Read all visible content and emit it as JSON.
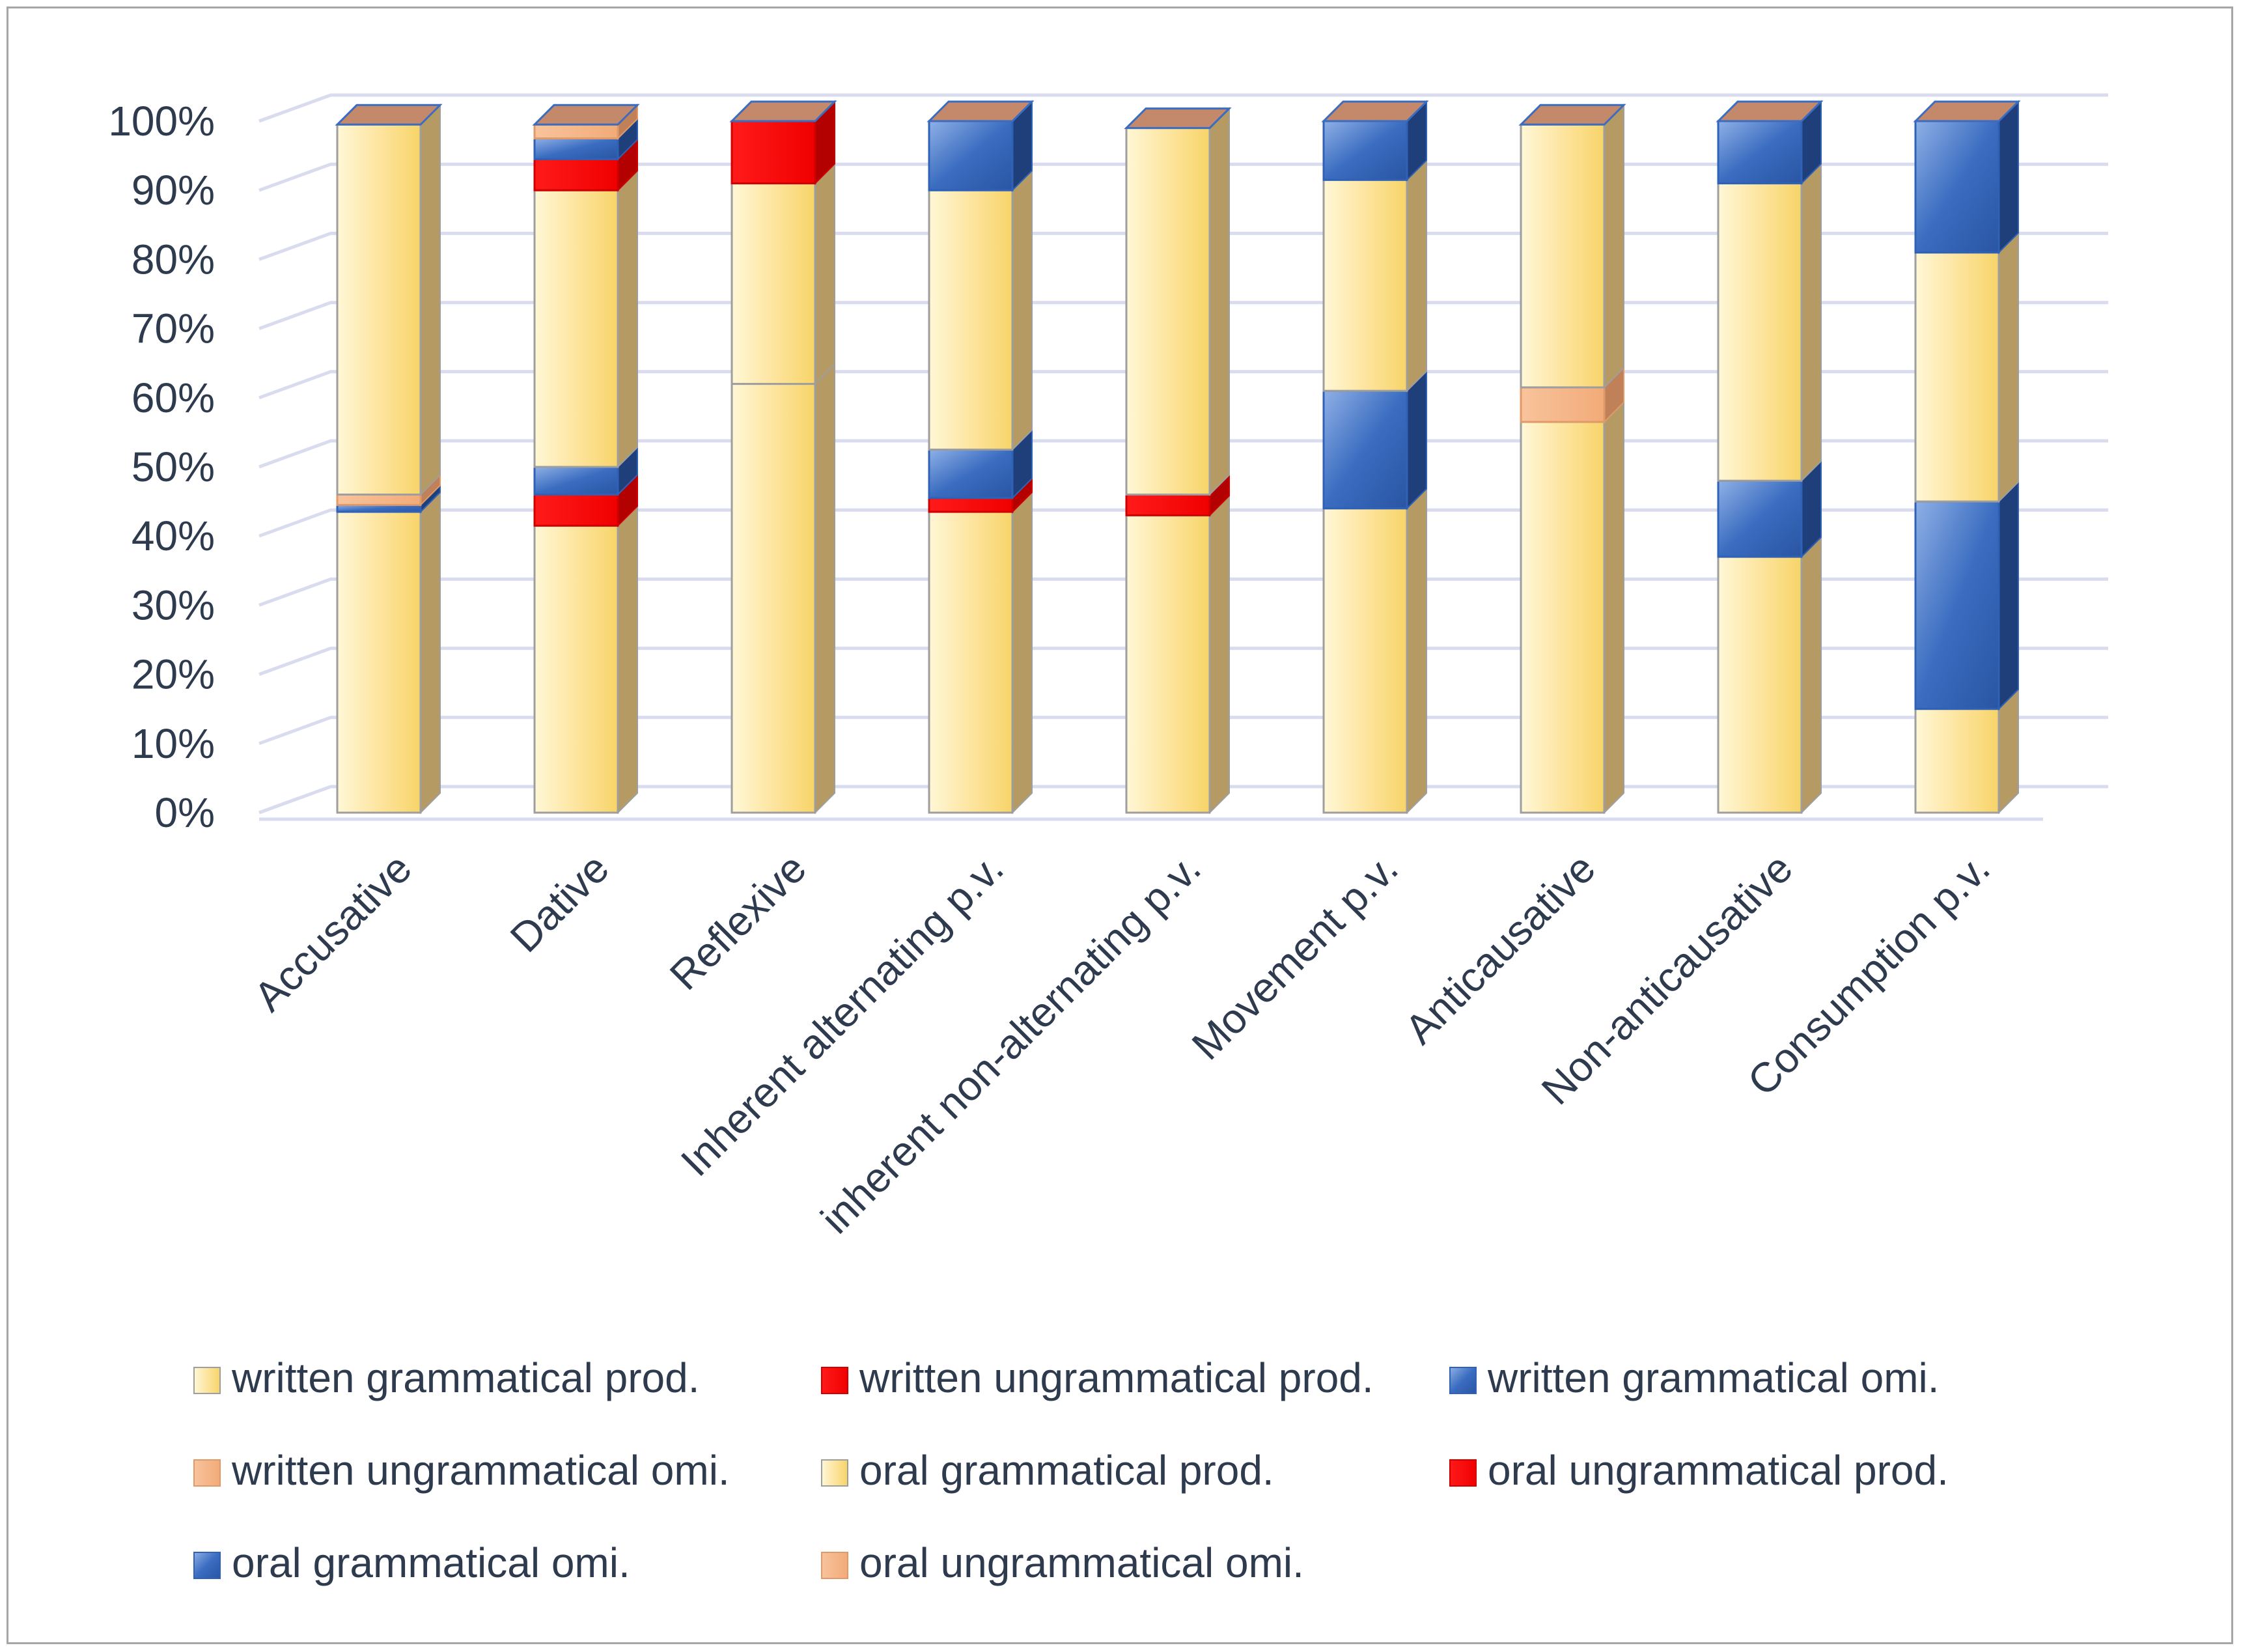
{
  "chart_data": {
    "type": "bar",
    "stacked": true,
    "style": "3d",
    "title": "",
    "xlabel": "",
    "ylabel": "",
    "ylim": [
      0,
      100
    ],
    "yticks": [
      "0%",
      "10%",
      "20%",
      "30%",
      "40%",
      "50%",
      "60%",
      "70%",
      "80%",
      "90%",
      "100%"
    ],
    "categories": [
      "Accusative",
      "Dative",
      "Reflexive",
      "Inherent alternating p.v.",
      "inherent non-alternating p.v.",
      "Movement p.v.",
      "Anticausative",
      "Non-anticausative",
      "Consumption p.v."
    ],
    "series": [
      {
        "name": "written grammatical prod.",
        "color": "#fbe39a",
        "values": [
          43.5,
          41.5,
          62.0,
          43.5,
          43.0,
          44.0,
          56.5,
          37.0,
          15.0
        ]
      },
      {
        "name": "written ungrammatical prod.",
        "color": "#ff0000",
        "values": [
          0,
          4.5,
          0,
          2.0,
          3.0,
          0,
          0,
          0,
          0
        ]
      },
      {
        "name": "written grammatical omi.",
        "color": "#3a6cc0",
        "values": [
          1.0,
          4.0,
          0,
          7.0,
          0,
          17.0,
          0,
          11.0,
          30.0
        ]
      },
      {
        "name": "written ungrammatical omi.",
        "color": "#f4b183",
        "values": [
          1.5,
          0,
          0,
          0,
          0,
          0,
          5.0,
          0,
          0
        ]
      },
      {
        "name": "oral grammatical prod.",
        "color": "#fbe39a",
        "values": [
          53.5,
          40.0,
          29.0,
          37.5,
          53.0,
          30.5,
          38.0,
          43.0,
          36.0
        ]
      },
      {
        "name": "oral ungrammatical prod.",
        "color": "#ff0000",
        "values": [
          0,
          4.5,
          9.0,
          0,
          0,
          0,
          0,
          0,
          0
        ]
      },
      {
        "name": "oral grammatical omi.",
        "color": "#3a6cc0",
        "values": [
          0,
          3.0,
          0,
          10.0,
          0,
          8.5,
          0,
          9.0,
          19.0
        ]
      },
      {
        "name": "oral ungrammatical omi.",
        "color": "#f4b183",
        "values": [
          0,
          2.0,
          0,
          0,
          0,
          0,
          0,
          0,
          0
        ]
      }
    ],
    "legend_position": "bottom",
    "grid": true
  }
}
